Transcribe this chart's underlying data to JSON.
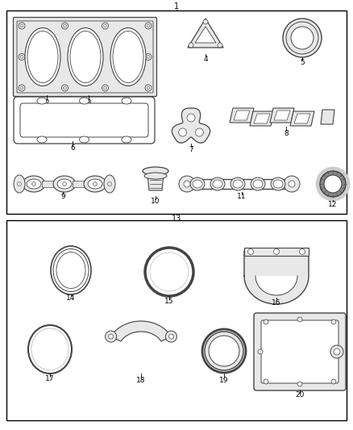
{
  "bg_color": "#ffffff",
  "border_color": "#000000",
  "line_color": "#444444",
  "text_color": "#000000"
}
